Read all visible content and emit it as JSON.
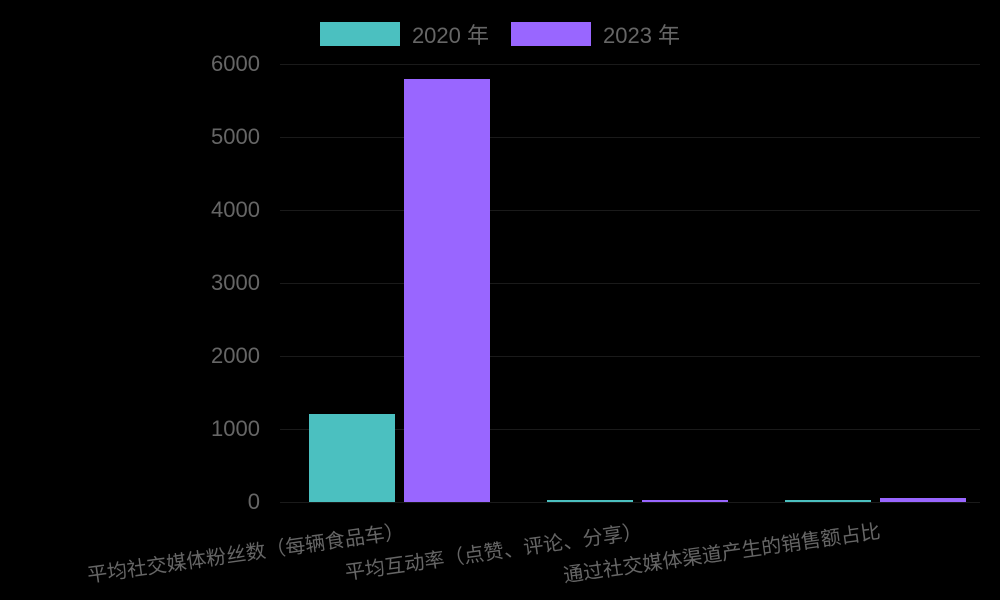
{
  "chart_data": {
    "type": "bar",
    "title": "",
    "xlabel": "",
    "ylabel": "",
    "categories": [
      "平均社交媒体粉丝数（每辆食品车）",
      "平均互动率（点赞、评论、分享）",
      "通过社交媒体渠道产生的销售额占比"
    ],
    "series": [
      {
        "name": "2020 年",
        "color": "#4bc0c0",
        "values": [
          1200,
          5,
          25
        ]
      },
      {
        "name": "2023 年",
        "color": "#9966ff",
        "values": [
          5800,
          15,
          55
        ]
      }
    ],
    "ylim": [
      0,
      6000
    ],
    "yticks": [
      "0",
      "1000",
      "2000",
      "3000",
      "4000",
      "5000",
      "6000"
    ],
    "legend_position": "top",
    "grid": true
  }
}
